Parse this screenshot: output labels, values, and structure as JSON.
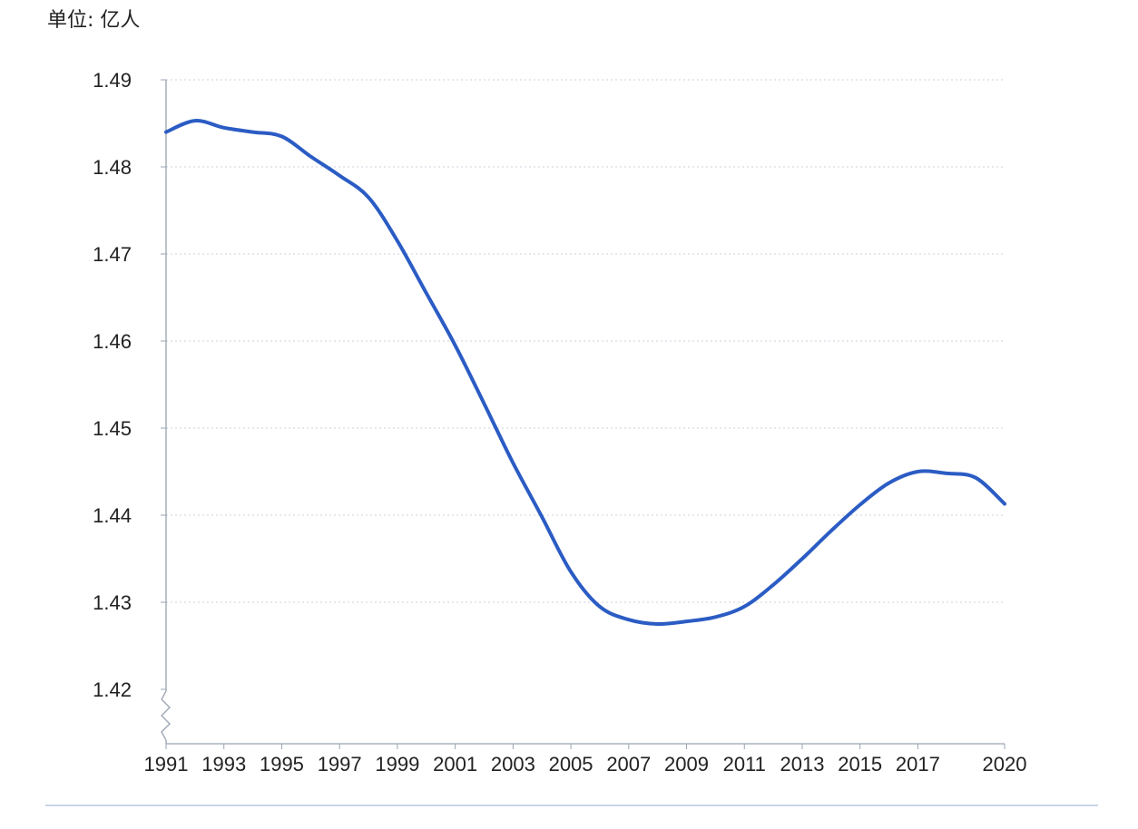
{
  "chart_data": {
    "type": "line",
    "unit_label": "单位: 亿人",
    "y_ticks": [
      "1.49",
      "1.48",
      "1.47",
      "1.46",
      "1.45",
      "1.44",
      "1.43",
      "1.42"
    ],
    "x_ticks": [
      "1991",
      "1993",
      "1995",
      "1997",
      "1999",
      "2001",
      "2003",
      "2005",
      "2007",
      "2009",
      "2011",
      "2013",
      "2015",
      "2017",
      "2020"
    ],
    "ylim": [
      1.42,
      1.49
    ],
    "y_axis_break": true,
    "grid": "horizontal-dotted",
    "color": "#2b5cc4",
    "series": [
      {
        "x": [
          1991,
          1992,
          1993,
          1994,
          1995,
          1996,
          1997,
          1998,
          1999,
          2000,
          2001,
          2002,
          2003,
          2004,
          2005,
          2006,
          2007,
          2008,
          2009,
          2010,
          2011,
          2012,
          2013,
          2014,
          2015,
          2016,
          2017,
          2018,
          2019,
          2020
        ],
        "values": [
          1.484,
          1.4853,
          1.4845,
          1.484,
          1.4835,
          1.4812,
          1.479,
          1.4765,
          1.4715,
          1.4655,
          1.4595,
          1.4528,
          1.446,
          1.4398,
          1.4335,
          1.4295,
          1.428,
          1.4275,
          1.4278,
          1.4283,
          1.4295,
          1.432,
          1.435,
          1.4382,
          1.4412,
          1.4437,
          1.445,
          1.4448,
          1.4443,
          1.4413
        ]
      }
    ]
  }
}
